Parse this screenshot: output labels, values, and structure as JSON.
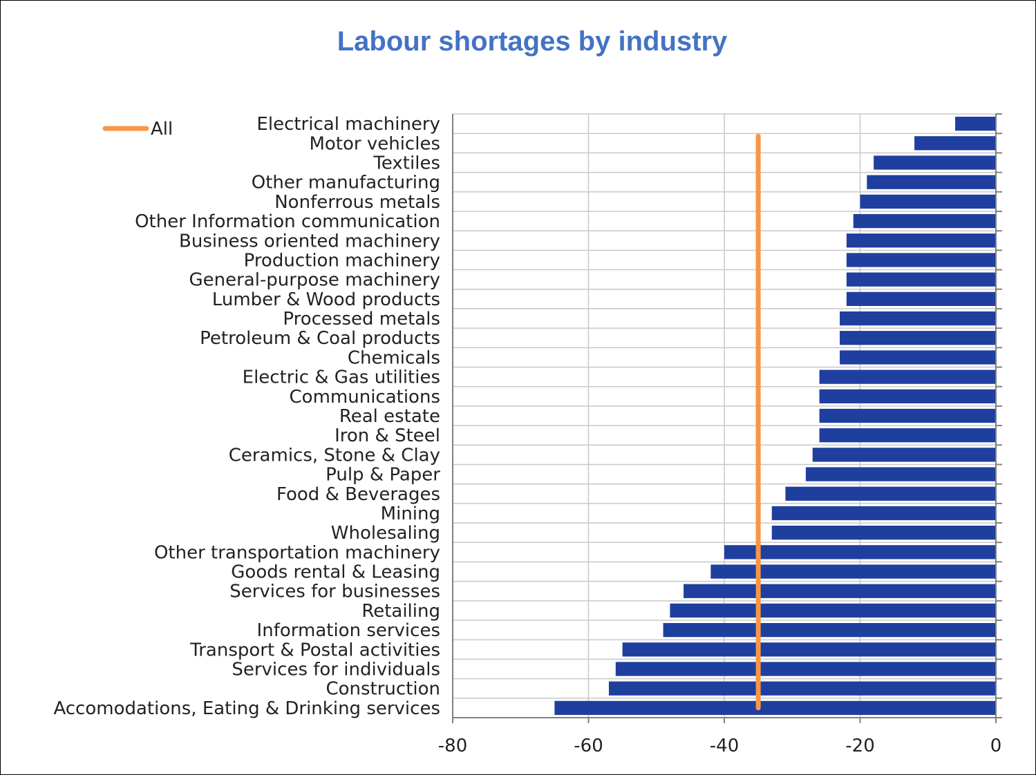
{
  "chart_data": {
    "type": "bar",
    "orientation": "horizontal",
    "title": "Labour shortages by industry",
    "xlabel": "",
    "ylabel": "",
    "xlim": [
      -80,
      0
    ],
    "xticks": [
      -80,
      -60,
      -40,
      -20,
      0
    ],
    "grid": true,
    "legend_position": "top-left",
    "colors": {
      "bars": "#1f3f9f",
      "reference": "#f79646",
      "title": "#4472c4",
      "grid": "#c8c8c8"
    },
    "categories": [
      "Electrical machinery",
      "Motor vehicles",
      "Textiles",
      "Other manufacturing",
      "Nonferrous metals",
      "Other Information communication",
      "Business oriented machinery",
      "Production machinery",
      "General-purpose machinery",
      "Lumber & Wood products",
      "Processed metals",
      "Petroleum & Coal products",
      "Chemicals",
      "Electric & Gas utilities",
      "Communications",
      "Real estate",
      "Iron & Steel",
      "Ceramics, Stone & Clay",
      "Pulp & Paper",
      "Food & Beverages",
      "Mining",
      "Wholesaling",
      "Other transportation machinery",
      "Goods rental & Leasing",
      "Services for businesses",
      "Retailing",
      "Information services",
      "Transport & Postal activities",
      "Services for individuals",
      "Construction",
      "Accomodations, Eating & Drinking services"
    ],
    "values": [
      -6,
      -12,
      -18,
      -19,
      -20,
      -21,
      -22,
      -22,
      -22,
      -22,
      -23,
      -23,
      -23,
      -26,
      -26,
      -26,
      -26,
      -27,
      -28,
      -31,
      -33,
      -33,
      -40,
      -42,
      -46,
      -48,
      -49,
      -55,
      -56,
      -57,
      -65
    ],
    "reference_line": {
      "name": "All",
      "value": -35
    }
  }
}
